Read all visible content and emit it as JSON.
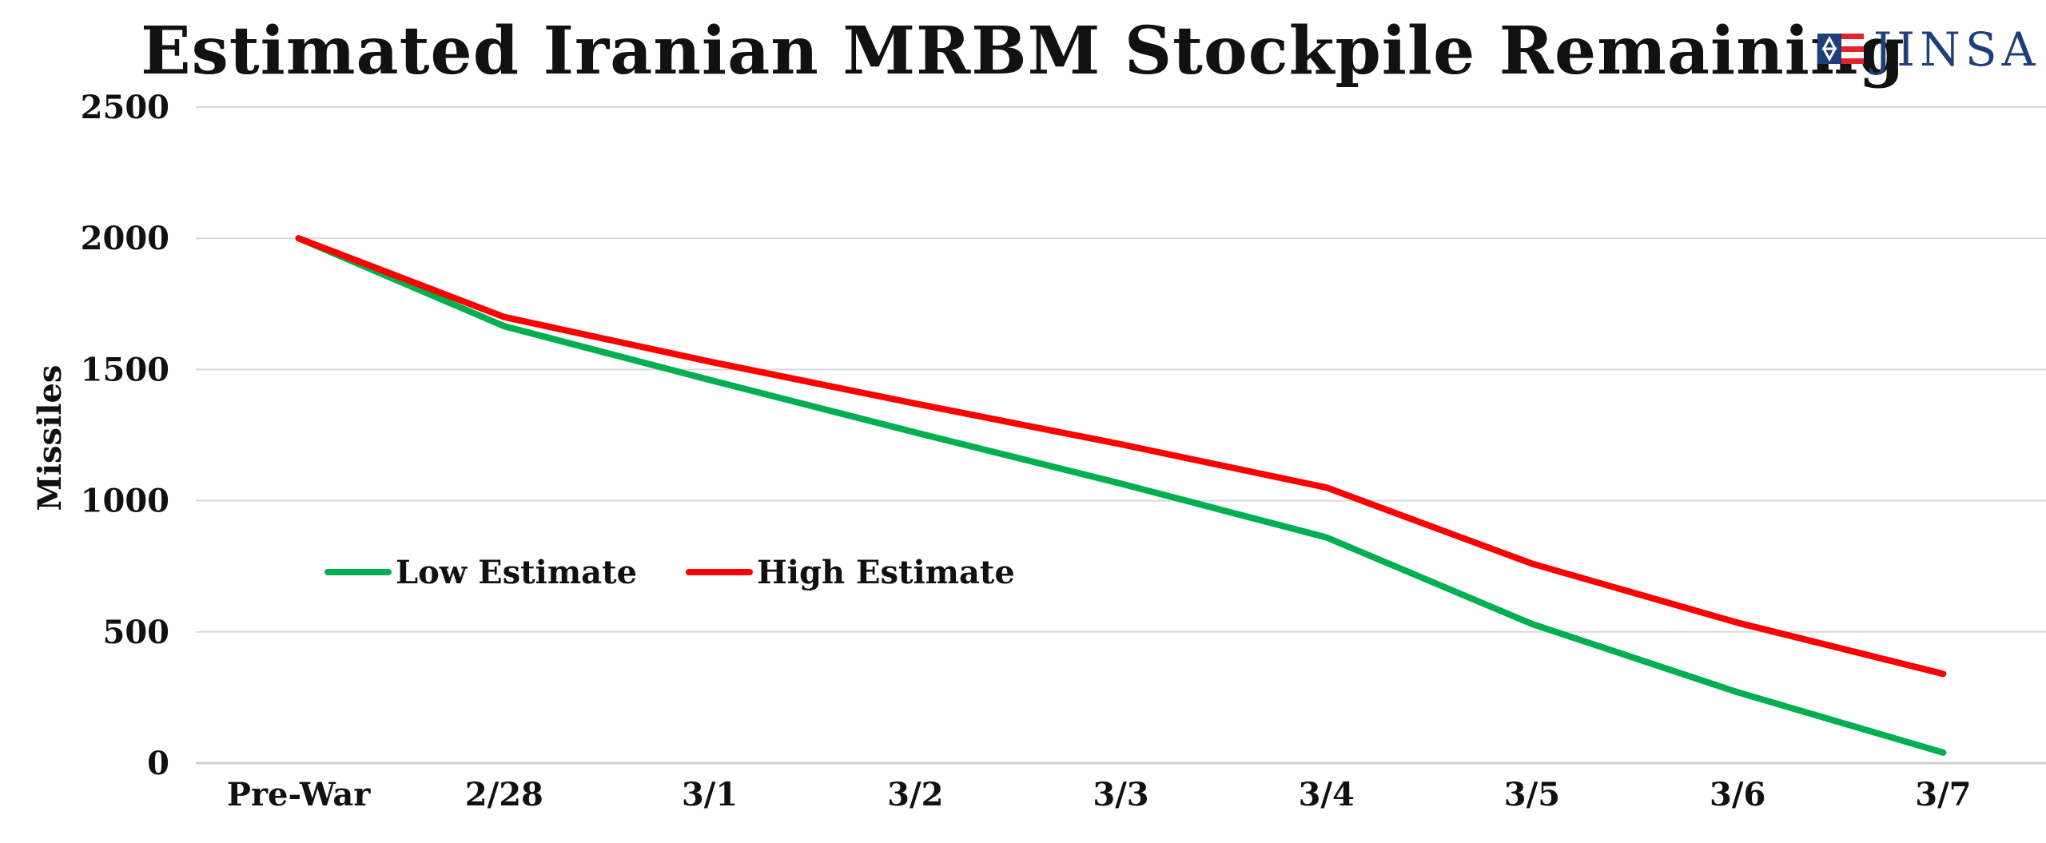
{
  "chart_data": {
    "type": "line",
    "title": "Estimated Iranian MRBM Stockpile Remaining",
    "xlabel": "",
    "ylabel": "Missiles",
    "categories": [
      "Pre-War",
      "2/28",
      "3/1",
      "3/2",
      "3/3",
      "3/4",
      "3/5",
      "3/6",
      "3/7"
    ],
    "ylim": [
      0,
      2500
    ],
    "yticks": [
      0,
      500,
      1000,
      1500,
      2000,
      2500
    ],
    "grid": true,
    "legend_position": "center-left",
    "series": [
      {
        "name": "Low Estimate",
        "color": "#00b050",
        "values": [
          2000,
          1665,
          1460,
          1260,
          1065,
          860,
          530,
          270,
          40
        ]
      },
      {
        "name": "High Estimate",
        "color": "#ff0000",
        "values": [
          2000,
          1700,
          1530,
          1370,
          1215,
          1050,
          760,
          535,
          340
        ]
      }
    ]
  },
  "branding": {
    "logo_text": "JINSA",
    "logo_colors": {
      "blue": "#1f3f7a",
      "red": "#e2232a"
    }
  },
  "style": {
    "grid_color": "#d9d9d9",
    "axis_color": "#cfcfcf"
  }
}
